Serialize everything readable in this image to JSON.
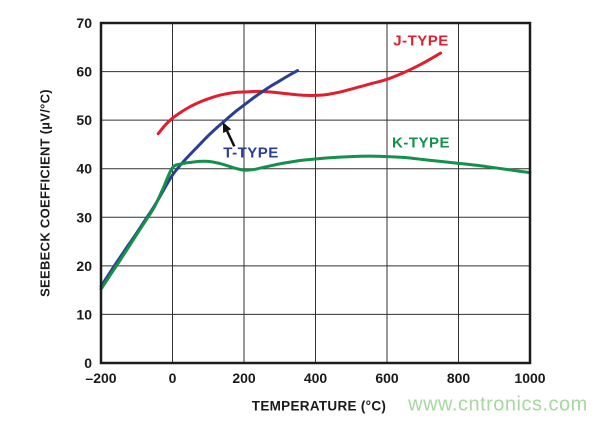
{
  "figure": {
    "watermark": "www.cntronics.com"
  },
  "chart_data": {
    "type": "line",
    "title": "",
    "xlabel": "TEMPERATURE (°C)",
    "ylabel": "SEEBECK COEFFICIENT (µV/°C)",
    "xlim": [
      -200,
      1000
    ],
    "ylim": [
      0,
      70
    ],
    "grid": true,
    "x_ticks": {
      "values": [
        -200,
        0,
        200,
        400,
        600,
        800,
        1000
      ],
      "labels": [
        "–200",
        "0",
        "200",
        "400",
        "600",
        "800",
        "1000"
      ]
    },
    "y_ticks": {
      "values": [
        0,
        10,
        20,
        30,
        40,
        50,
        60,
        70
      ],
      "labels": [
        "0",
        "10",
        "20",
        "30",
        "40",
        "50",
        "60",
        "70"
      ]
    },
    "series": [
      {
        "name": "J-TYPE",
        "color": "#e01f2e",
        "points": [
          [
            -40,
            47.2
          ],
          [
            -20,
            49.0
          ],
          [
            0,
            50.4
          ],
          [
            25,
            51.7
          ],
          [
            50,
            52.8
          ],
          [
            75,
            53.7
          ],
          [
            100,
            54.4
          ],
          [
            125,
            55.0
          ],
          [
            150,
            55.4
          ],
          [
            175,
            55.7
          ],
          [
            200,
            55.8
          ],
          [
            225,
            55.9
          ],
          [
            250,
            55.9
          ],
          [
            275,
            55.8
          ],
          [
            300,
            55.6
          ],
          [
            325,
            55.4
          ],
          [
            350,
            55.2
          ],
          [
            375,
            55.1
          ],
          [
            400,
            55.1
          ],
          [
            425,
            55.2
          ],
          [
            450,
            55.5
          ],
          [
            475,
            55.9
          ],
          [
            500,
            56.4
          ],
          [
            550,
            57.4
          ],
          [
            600,
            58.4
          ],
          [
            650,
            59.9
          ],
          [
            700,
            61.7
          ],
          [
            750,
            63.8
          ]
        ]
      },
      {
        "name": "T-TYPE",
        "color": "#2a3f8f",
        "points": [
          [
            -200,
            15.8
          ],
          [
            -175,
            18.6
          ],
          [
            -150,
            21.4
          ],
          [
            -125,
            24.1
          ],
          [
            -100,
            26.8
          ],
          [
            -75,
            29.6
          ],
          [
            -50,
            32.4
          ],
          [
            -25,
            35.6
          ],
          [
            0,
            38.7
          ],
          [
            25,
            41.0
          ],
          [
            50,
            43.0
          ],
          [
            75,
            44.9
          ],
          [
            100,
            46.8
          ],
          [
            125,
            48.5
          ],
          [
            150,
            50.1
          ],
          [
            175,
            51.7
          ],
          [
            200,
            53.1
          ],
          [
            225,
            54.5
          ],
          [
            250,
            55.8
          ],
          [
            275,
            57.0
          ],
          [
            300,
            58.1
          ],
          [
            325,
            59.2
          ],
          [
            350,
            60.2
          ]
        ]
      },
      {
        "name": "K-TYPE",
        "color": "#14904a",
        "points": [
          [
            -200,
            15.2
          ],
          [
            -175,
            18.0
          ],
          [
            -150,
            20.8
          ],
          [
            -125,
            23.6
          ],
          [
            -100,
            26.5
          ],
          [
            -75,
            29.3
          ],
          [
            -50,
            32.2
          ],
          [
            -25,
            36.2
          ],
          [
            0,
            40.2
          ],
          [
            25,
            41.0
          ],
          [
            50,
            41.3
          ],
          [
            75,
            41.5
          ],
          [
            100,
            41.5
          ],
          [
            125,
            41.2
          ],
          [
            150,
            40.7
          ],
          [
            175,
            40.1
          ],
          [
            200,
            39.7
          ],
          [
            225,
            39.8
          ],
          [
            250,
            40.2
          ],
          [
            300,
            41.0
          ],
          [
            350,
            41.6
          ],
          [
            400,
            42.0
          ],
          [
            450,
            42.3
          ],
          [
            500,
            42.5
          ],
          [
            550,
            42.6
          ],
          [
            600,
            42.5
          ],
          [
            650,
            42.3
          ],
          [
            700,
            41.9
          ],
          [
            750,
            41.5
          ],
          [
            800,
            41.1
          ],
          [
            850,
            40.7
          ],
          [
            900,
            40.2
          ],
          [
            950,
            39.7
          ],
          [
            1000,
            39.2
          ]
        ]
      }
    ],
    "annotation": {
      "target_series": "T-TYPE",
      "arrow_from": [
        173,
        44.6
      ],
      "arrow_to": [
        141,
        49.6
      ],
      "color": "#111111"
    },
    "colors": {
      "background": "#ffffff",
      "grid": "#303030",
      "border": "#1c1c1c",
      "text": "#1a1a1a",
      "watermark": "#a6d89f"
    }
  }
}
